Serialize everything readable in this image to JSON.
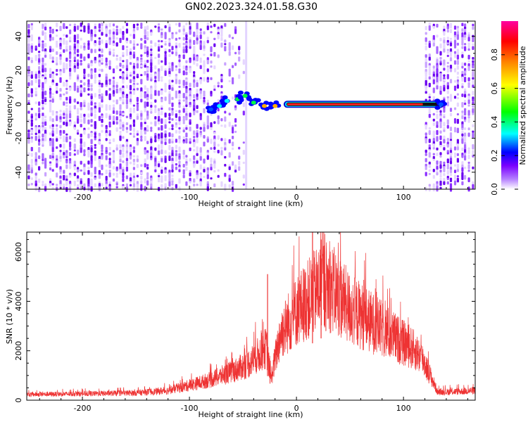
{
  "figure_title": "GN02.2023.324.01.58.G30",
  "chart_data": [
    {
      "type": "heatmap",
      "name": "spectrogram",
      "xlabel": "Height of straight line (km)",
      "ylabel": "Frequency (Hz)",
      "xlim": [
        -252,
        167
      ],
      "ylim": [
        -50,
        49
      ],
      "x_ticks": [
        -200,
        -100,
        0,
        100
      ],
      "y_ticks": [
        -40,
        -20,
        0,
        20,
        40
      ],
      "x_tick_labels": [
        "-200",
        "-100",
        "0",
        "100"
      ],
      "y_tick_labels": [
        "-40",
        "-20",
        "0",
        "20",
        "40"
      ],
      "colorbar": {
        "label": "Normalized spectral amplitude",
        "range": [
          0,
          1
        ],
        "ticks": [
          0.0,
          0.2,
          0.4,
          0.6,
          0.8
        ],
        "tick_labels": [
          "0.0",
          "0.2",
          "0.4",
          "0.6",
          "0.8"
        ],
        "colormap": [
          "#ffffff",
          "#7a00ff",
          "#0000ff",
          "#00ffff",
          "#00ff00",
          "#ffff00",
          "#ff8000",
          "#ff0000",
          "#ff00a0"
        ]
      },
      "noise_regions": [
        {
          "x_range": [
            -252,
            -48
          ],
          "density": "high"
        },
        {
          "x_range": [
            120,
            167
          ],
          "density": "high"
        }
      ],
      "carrier_trace": {
        "frequency": 0,
        "x_range": [
          -82,
          138
        ],
        "points": [
          {
            "x": -80,
            "y": -3,
            "amp": 0.25
          },
          {
            "x": -72,
            "y": -1,
            "amp": 0.35
          },
          {
            "x": -65,
            "y": 2,
            "amp": 0.4
          },
          {
            "x": -55,
            "y": 3,
            "amp": 0.45
          },
          {
            "x": -48,
            "y": 5,
            "amp": 0.45
          },
          {
            "x": -40,
            "y": 1,
            "amp": 0.5
          },
          {
            "x": -30,
            "y": -1,
            "amp": 0.7
          },
          {
            "x": -20,
            "y": -1,
            "amp": 0.8
          },
          {
            "x": -10,
            "y": 0,
            "amp": 0.85
          },
          {
            "x": 0,
            "y": 0,
            "amp": 0.9
          },
          {
            "x": 40,
            "y": 0,
            "amp": 0.92
          },
          {
            "x": 80,
            "y": 0,
            "amp": 0.9
          },
          {
            "x": 120,
            "y": 0,
            "amp": 0.85
          },
          {
            "x": 135,
            "y": 0,
            "amp": 0.3
          }
        ]
      }
    },
    {
      "type": "line",
      "name": "snr",
      "xlabel": "Height of straight line (km)",
      "ylabel": "SNR (10 * v/v)",
      "xlim": [
        -252,
        167
      ],
      "ylim": [
        0,
        6800
      ],
      "x_ticks": [
        -200,
        -100,
        0,
        100
      ],
      "y_ticks": [
        0,
        2000,
        4000,
        6000
      ],
      "x_tick_labels": [
        "-200",
        "-100",
        "0",
        "100"
      ],
      "y_tick_labels": [
        "0",
        "2000",
        "4000",
        "6000"
      ],
      "color": "#ee3333",
      "envelope": [
        {
          "x": -252,
          "y": 250
        },
        {
          "x": -200,
          "y": 280
        },
        {
          "x": -150,
          "y": 320
        },
        {
          "x": -120,
          "y": 420
        },
        {
          "x": -100,
          "y": 650
        },
        {
          "x": -80,
          "y": 900
        },
        {
          "x": -60,
          "y": 1250
        },
        {
          "x": -45,
          "y": 1600
        },
        {
          "x": -35,
          "y": 2000
        },
        {
          "x": -28,
          "y": 2300
        },
        {
          "x": -24,
          "y": 900
        },
        {
          "x": -15,
          "y": 2900
        },
        {
          "x": 0,
          "y": 3900
        },
        {
          "x": 15,
          "y": 4600
        },
        {
          "x": 25,
          "y": 5100
        },
        {
          "x": 35,
          "y": 4800
        },
        {
          "x": 50,
          "y": 4000
        },
        {
          "x": 70,
          "y": 3400
        },
        {
          "x": 90,
          "y": 2800
        },
        {
          "x": 110,
          "y": 2200
        },
        {
          "x": 118,
          "y": 1800
        },
        {
          "x": 124,
          "y": 1200
        },
        {
          "x": 132,
          "y": 350
        },
        {
          "x": 150,
          "y": 380
        },
        {
          "x": 167,
          "y": 420
        }
      ],
      "spikes": [
        {
          "x": -27,
          "y": 5100
        },
        {
          "x": 15,
          "y": 6800
        },
        {
          "x": 23,
          "y": 6500
        }
      ]
    }
  ]
}
